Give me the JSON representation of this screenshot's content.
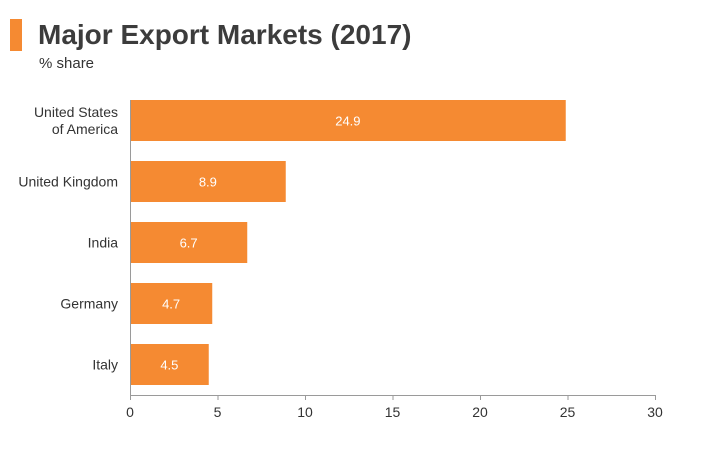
{
  "header": {
    "title": "Major Export Markets (2017)",
    "subtitle": "% share"
  },
  "colors": {
    "accent": "#f58a32",
    "bar": "#f58a32",
    "axis": "#9a9a9a",
    "text": "#333333",
    "value_label": "#ffffff"
  },
  "chart_data": {
    "type": "bar",
    "orientation": "horizontal",
    "title": "Major Export Markets (2017)",
    "subtitle": "% share",
    "categories": [
      [
        "United States",
        "of America"
      ],
      [
        "United Kingdom"
      ],
      [
        "India"
      ],
      [
        "Germany"
      ],
      [
        "Italy"
      ]
    ],
    "values": [
      24.9,
      8.9,
      6.7,
      4.7,
      4.5
    ],
    "data_labels": [
      "24.9",
      "8.9",
      "6.7",
      "4.7",
      "4.5"
    ],
    "xlim": [
      0,
      30
    ],
    "xticks": [
      0,
      5,
      10,
      15,
      20,
      25,
      30
    ],
    "xlabel": "",
    "ylabel": "",
    "grid": false,
    "legend": "none"
  }
}
